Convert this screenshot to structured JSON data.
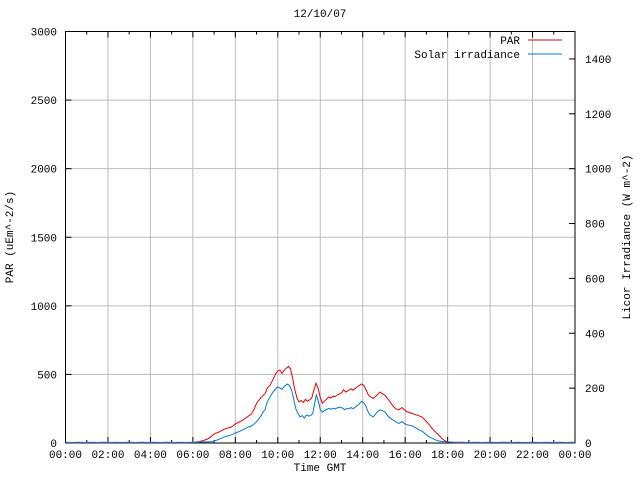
{
  "title": "12/10/07",
  "xlabel": "Time GMT",
  "ylabel_left": "PAR (uEm^-2/s)",
  "ylabel_right": "Licor Irradiance (W m^-2)",
  "colors": {
    "par_line": "#ee0000",
    "solar_line": "#0078d7",
    "grid": "#bcbcbc",
    "axis": "#000000",
    "background": "#ffffff"
  },
  "legend": {
    "entries": [
      {
        "label": "PAR",
        "color": "#ee0000"
      },
      {
        "label": "Solar irradiance",
        "color": "#0078d7"
      }
    ]
  },
  "chart_data": {
    "type": "line",
    "title": "12/10/07",
    "xlabel": "Time GMT",
    "grid": "on",
    "legend_position": "top-right-inside",
    "x_axis": {
      "label": "Time GMT",
      "range_hours": [
        0,
        24
      ],
      "major_tick_hours": 2,
      "minor_tick_hours": 1,
      "tick_labels": [
        "00:00",
        "02:00",
        "04:00",
        "06:00",
        "08:00",
        "10:00",
        "12:00",
        "14:00",
        "16:00",
        "18:00",
        "20:00",
        "22:00",
        "00:00"
      ]
    },
    "left_axis": {
      "label": "PAR (uEm^-2/s)",
      "range": [
        0,
        3000
      ],
      "ticks": [
        0,
        500,
        1000,
        1500,
        2000,
        2500,
        3000
      ],
      "gridlines_at": [
        500,
        1000,
        1500,
        2000,
        2500
      ]
    },
    "right_axis": {
      "label": "Licor Irradiance (W m^-2)",
      "range": [
        0,
        1500
      ],
      "ticks": [
        0,
        200,
        400,
        600,
        800,
        1000,
        1200,
        1400
      ]
    },
    "series": [
      {
        "name": "PAR",
        "axis": "left",
        "color": "#ee0000",
        "points": [
          [
            0,
            2
          ],
          [
            0.5,
            2
          ],
          [
            1,
            3
          ],
          [
            1.5,
            2
          ],
          [
            2,
            2
          ],
          [
            2.5,
            3
          ],
          [
            3,
            2
          ],
          [
            3.5,
            2
          ],
          [
            4,
            3
          ],
          [
            4.5,
            2
          ],
          [
            5,
            2
          ],
          [
            5.5,
            2
          ],
          [
            5.9,
            3
          ],
          [
            6.1,
            6
          ],
          [
            6.3,
            10
          ],
          [
            6.5,
            18
          ],
          [
            6.7,
            30
          ],
          [
            6.85,
            45
          ],
          [
            7.0,
            65
          ],
          [
            7.15,
            75
          ],
          [
            7.3,
            85
          ],
          [
            7.45,
            100
          ],
          [
            7.6,
            108
          ],
          [
            7.75,
            112
          ],
          [
            7.9,
            125
          ],
          [
            8.0,
            140
          ],
          [
            8.15,
            150
          ],
          [
            8.3,
            162
          ],
          [
            8.45,
            178
          ],
          [
            8.6,
            195
          ],
          [
            8.75,
            210
          ],
          [
            8.9,
            250
          ],
          [
            9.0,
            290
          ],
          [
            9.1,
            310
          ],
          [
            9.2,
            330
          ],
          [
            9.3,
            345
          ],
          [
            9.4,
            360
          ],
          [
            9.5,
            400
          ],
          [
            9.65,
            425
          ],
          [
            9.8,
            470
          ],
          [
            9.9,
            505
          ],
          [
            10.0,
            525
          ],
          [
            10.1,
            532
          ],
          [
            10.2,
            507
          ],
          [
            10.3,
            530
          ],
          [
            10.4,
            545
          ],
          [
            10.5,
            558
          ],
          [
            10.6,
            540
          ],
          [
            10.7,
            470
          ],
          [
            10.8,
            390
          ],
          [
            10.9,
            330
          ],
          [
            11.0,
            300
          ],
          [
            11.1,
            310
          ],
          [
            11.2,
            295
          ],
          [
            11.3,
            318
          ],
          [
            11.4,
            305
          ],
          [
            11.5,
            315
          ],
          [
            11.6,
            330
          ],
          [
            11.7,
            385
          ],
          [
            11.8,
            437
          ],
          [
            11.9,
            400
          ],
          [
            12.0,
            330
          ],
          [
            12.1,
            290
          ],
          [
            12.2,
            305
          ],
          [
            12.3,
            320
          ],
          [
            12.4,
            335
          ],
          [
            12.5,
            328
          ],
          [
            12.6,
            342
          ],
          [
            12.7,
            338
          ],
          [
            12.8,
            350
          ],
          [
            12.9,
            358
          ],
          [
            13.0,
            365
          ],
          [
            13.1,
            388
          ],
          [
            13.2,
            372
          ],
          [
            13.3,
            380
          ],
          [
            13.45,
            395
          ],
          [
            13.55,
            385
          ],
          [
            13.65,
            398
          ],
          [
            13.8,
            415
          ],
          [
            13.95,
            430
          ],
          [
            14.05,
            420
          ],
          [
            14.15,
            390
          ],
          [
            14.25,
            355
          ],
          [
            14.35,
            338
          ],
          [
            14.5,
            325
          ],
          [
            14.65,
            345
          ],
          [
            14.8,
            371
          ],
          [
            14.95,
            358
          ],
          [
            15.05,
            348
          ],
          [
            15.15,
            328
          ],
          [
            15.25,
            310
          ],
          [
            15.4,
            275
          ],
          [
            15.55,
            250
          ],
          [
            15.7,
            242
          ],
          [
            15.85,
            258
          ],
          [
            15.95,
            245
          ],
          [
            16.05,
            231
          ],
          [
            16.2,
            222
          ],
          [
            16.35,
            214
          ],
          [
            16.5,
            206
          ],
          [
            16.65,
            198
          ],
          [
            16.8,
            188
          ],
          [
            16.95,
            165
          ],
          [
            17.1,
            140
          ],
          [
            17.25,
            109
          ],
          [
            17.4,
            85
          ],
          [
            17.55,
            62
          ],
          [
            17.7,
            38
          ],
          [
            17.85,
            18
          ],
          [
            18.0,
            8
          ],
          [
            18.3,
            3
          ],
          [
            18.6,
            2
          ],
          [
            19,
            2
          ],
          [
            19.5,
            2
          ],
          [
            20,
            3
          ],
          [
            20.5,
            2
          ],
          [
            21,
            2
          ],
          [
            21.5,
            3
          ],
          [
            22,
            2
          ],
          [
            22.5,
            2
          ],
          [
            23,
            3
          ],
          [
            23.5,
            2
          ],
          [
            24,
            2
          ]
        ]
      },
      {
        "name": "Solar irradiance",
        "axis": "right",
        "color": "#0078d7",
        "points": [
          [
            0,
            3
          ],
          [
            0.3,
            2
          ],
          [
            0.6,
            3
          ],
          [
            0.9,
            2
          ],
          [
            1.2,
            3
          ],
          [
            1.5,
            2
          ],
          [
            1.8,
            3
          ],
          [
            2.1,
            2
          ],
          [
            2.4,
            3
          ],
          [
            2.7,
            2
          ],
          [
            3.0,
            3
          ],
          [
            3.3,
            2
          ],
          [
            3.6,
            3
          ],
          [
            3.9,
            2
          ],
          [
            4.2,
            3
          ],
          [
            4.5,
            2
          ],
          [
            4.8,
            3
          ],
          [
            5.1,
            2
          ],
          [
            5.4,
            3
          ],
          [
            5.7,
            2
          ],
          [
            6.0,
            3
          ],
          [
            6.3,
            3
          ],
          [
            6.5,
            4
          ],
          [
            6.7,
            4
          ],
          [
            6.9,
            5
          ],
          [
            7.0,
            8
          ],
          [
            7.15,
            11
          ],
          [
            7.3,
            16
          ],
          [
            7.45,
            21
          ],
          [
            7.6,
            25
          ],
          [
            7.75,
            28
          ],
          [
            7.9,
            32
          ],
          [
            8.0,
            36
          ],
          [
            8.15,
            41
          ],
          [
            8.3,
            46
          ],
          [
            8.45,
            52
          ],
          [
            8.6,
            58
          ],
          [
            8.75,
            62
          ],
          [
            8.9,
            70
          ],
          [
            9.0,
            78
          ],
          [
            9.1,
            88
          ],
          [
            9.2,
            98
          ],
          [
            9.3,
            112
          ],
          [
            9.4,
            122
          ],
          [
            9.5,
            150
          ],
          [
            9.65,
            170
          ],
          [
            9.8,
            188
          ],
          [
            9.9,
            198
          ],
          [
            10.0,
            204
          ],
          [
            10.1,
            200
          ],
          [
            10.2,
            196
          ],
          [
            10.3,
            206
          ],
          [
            10.45,
            215
          ],
          [
            10.55,
            210
          ],
          [
            10.65,
            192
          ],
          [
            10.75,
            160
          ],
          [
            10.85,
            125
          ],
          [
            10.95,
            108
          ],
          [
            11.05,
            95
          ],
          [
            11.15,
            100
          ],
          [
            11.25,
            91
          ],
          [
            11.35,
            102
          ],
          [
            11.45,
            98
          ],
          [
            11.55,
            100
          ],
          [
            11.65,
            108
          ],
          [
            11.75,
            150
          ],
          [
            11.82,
            175
          ],
          [
            11.9,
            155
          ],
          [
            12.0,
            122
          ],
          [
            12.1,
            112
          ],
          [
            12.2,
            119
          ],
          [
            12.3,
            122
          ],
          [
            12.4,
            126
          ],
          [
            12.5,
            123
          ],
          [
            12.6,
            127
          ],
          [
            12.7,
            124
          ],
          [
            12.8,
            128
          ],
          [
            12.95,
            131
          ],
          [
            13.05,
            127
          ],
          [
            13.15,
            121
          ],
          [
            13.25,
            126
          ],
          [
            13.35,
            124
          ],
          [
            13.45,
            129
          ],
          [
            13.55,
            125
          ],
          [
            13.65,
            131
          ],
          [
            13.8,
            140
          ],
          [
            13.95,
            152
          ],
          [
            14.05,
            146
          ],
          [
            14.15,
            134
          ],
          [
            14.25,
            114
          ],
          [
            14.35,
            102
          ],
          [
            14.5,
            95
          ],
          [
            14.65,
            110
          ],
          [
            14.8,
            121
          ],
          [
            14.95,
            117
          ],
          [
            15.05,
            113
          ],
          [
            15.15,
            102
          ],
          [
            15.25,
            94
          ],
          [
            15.4,
            85
          ],
          [
            15.55,
            78
          ],
          [
            15.7,
            71
          ],
          [
            15.85,
            78
          ],
          [
            15.95,
            72
          ],
          [
            16.05,
            67
          ],
          [
            16.2,
            65
          ],
          [
            16.35,
            62
          ],
          [
            16.5,
            55
          ],
          [
            16.65,
            48
          ],
          [
            16.8,
            43
          ],
          [
            16.95,
            33
          ],
          [
            17.1,
            24
          ],
          [
            17.25,
            18
          ],
          [
            17.4,
            12
          ],
          [
            17.55,
            8
          ],
          [
            17.7,
            6
          ],
          [
            17.85,
            5
          ],
          [
            18.0,
            4
          ],
          [
            18.3,
            3
          ],
          [
            18.6,
            3
          ],
          [
            19.0,
            2
          ],
          [
            19.3,
            3
          ],
          [
            19.6,
            2
          ],
          [
            20.0,
            3
          ],
          [
            20.3,
            2
          ],
          [
            20.6,
            3
          ],
          [
            21.0,
            2
          ],
          [
            21.3,
            3
          ],
          [
            21.6,
            2
          ],
          [
            22.0,
            3
          ],
          [
            22.3,
            2
          ],
          [
            22.6,
            3
          ],
          [
            23.0,
            2
          ],
          [
            23.3,
            3
          ],
          [
            23.6,
            2
          ],
          [
            24.0,
            3
          ]
        ]
      }
    ]
  }
}
